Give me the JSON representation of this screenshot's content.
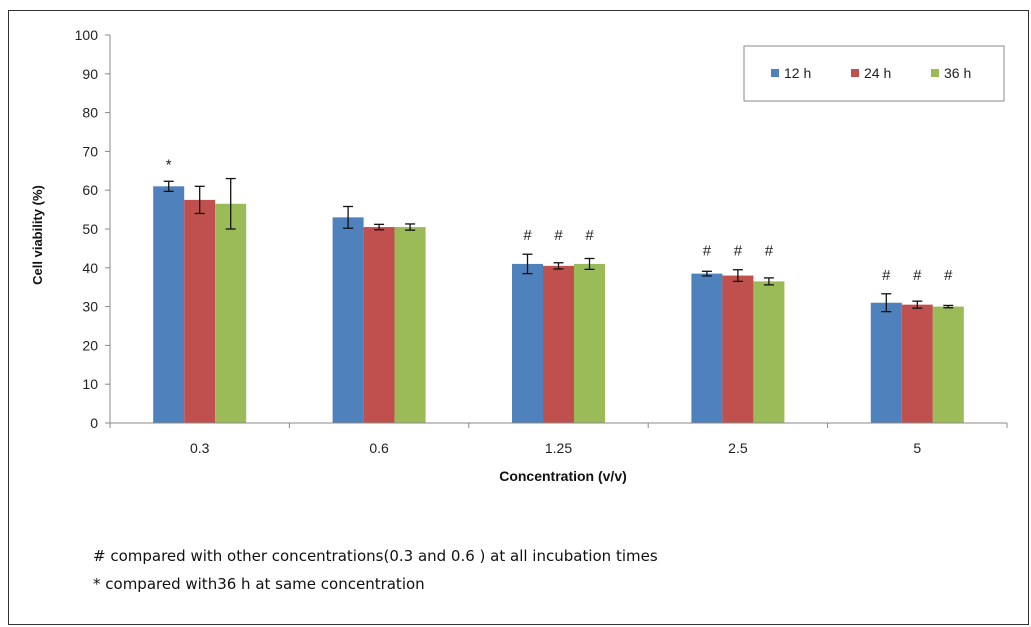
{
  "chart_data": {
    "type": "bar",
    "title": "",
    "xlabel": "Concentration (v/v)",
    "ylabel": "Cell viability (%)",
    "ylim": [
      0,
      100
    ],
    "yticks": [
      0,
      10,
      20,
      30,
      40,
      50,
      60,
      70,
      80,
      90,
      100
    ],
    "categories": [
      "0.3",
      "0.6",
      "1.25",
      "2.5",
      "5"
    ],
    "series": [
      {
        "name": "12 h",
        "color": "#4F81BD",
        "values": [
          61,
          53,
          41,
          38.5,
          31
        ],
        "errors": [
          1.3,
          2.8,
          2.5,
          0.6,
          2.3
        ]
      },
      {
        "name": "24 h",
        "color": "#C0504D",
        "values": [
          57.5,
          50.5,
          40.5,
          38,
          30.5
        ],
        "errors": [
          3.5,
          0.7,
          0.8,
          1.5,
          0.9
        ]
      },
      {
        "name": "36 h",
        "color": "#9BBB59",
        "values": [
          56.5,
          50.5,
          41,
          36.5,
          30
        ],
        "errors": [
          6.5,
          0.8,
          1.4,
          0.9,
          0.3
        ]
      }
    ],
    "annotations": [
      {
        "category": "0.3",
        "text": "*",
        "marked_series": [
          "12 h"
        ]
      },
      {
        "category": "1.25",
        "text": "#",
        "marked_series": [
          "12 h",
          "24 h",
          "36 h"
        ]
      },
      {
        "category": "2.5",
        "text": "#",
        "marked_series": [
          "12 h",
          "24 h",
          "36 h"
        ]
      },
      {
        "category": "5",
        "text": "#",
        "marked_series": [
          "12 h",
          "24 h",
          "36 h"
        ]
      }
    ],
    "legend_position": "top-right",
    "grid": false
  },
  "footnotes": {
    "hash_note": "# compared with other concentrations(0.3 and 0.6 ) at all incubation times",
    "star_note": "* compared with36 h at same concentration"
  }
}
